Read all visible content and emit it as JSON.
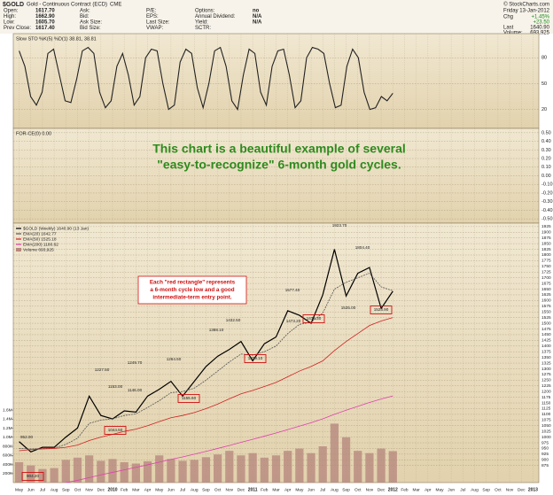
{
  "header": {
    "symbol": "$GOLD",
    "title": "Gold - Continuous Contract (ECD)",
    "exchange": "CME",
    "credit": "© StockCharts.com",
    "date": "Friday 13-Jan-2012",
    "change_label": "Chg",
    "change_pct": "+1.45%",
    "change": "+23.50",
    "last_label": "Last",
    "last": "1640.90",
    "volume_label": "Volume:",
    "volume": "693,925",
    "columns": [
      [
        {
          "label": "Open:",
          "value": "1617.70"
        },
        {
          "label": "High:",
          "value": "1662.90"
        },
        {
          "label": "Low:",
          "value": "1605.70"
        },
        {
          "label": "Prev Close:",
          "value": "1617.40"
        }
      ],
      [
        {
          "label": "Ask:"
        },
        {
          "label": "Bid:"
        },
        {
          "label": "Ask Size:"
        },
        {
          "label": "Bid Size:"
        }
      ],
      [
        {
          "label": "P/E:"
        },
        {
          "label": "EPS:"
        },
        {
          "label": "Last Size:"
        },
        {
          "label": "VWAP:"
        }
      ],
      [
        {
          "label": "Options:",
          "value": "no"
        },
        {
          "label": "Annual Dividend:",
          "value": "N/A"
        },
        {
          "label": "Yield:",
          "value": "N/A"
        },
        {
          "label": "SCTR:"
        }
      ]
    ]
  },
  "chart_data": [
    {
      "type": "line",
      "title": "Slow STO %K(5) %D(1) 38.81, 38.81",
      "color": "#222222",
      "values": [
        88,
        70,
        35,
        25,
        40,
        85,
        90,
        60,
        30,
        28,
        55,
        88,
        92,
        85,
        40,
        22,
        30,
        70,
        85,
        60,
        25,
        35,
        80,
        90,
        88,
        50,
        20,
        25,
        75,
        90,
        85,
        45,
        22,
        50,
        88,
        92,
        70,
        30,
        20,
        60,
        90,
        85,
        40,
        25,
        70,
        88,
        90,
        60,
        22,
        30,
        80,
        92,
        90,
        85,
        50,
        22,
        25,
        70,
        90,
        80,
        40,
        20,
        22,
        35,
        30,
        38.81
      ],
      "ylim": [
        -2,
        108
      ],
      "yticks": [
        20,
        50,
        80
      ],
      "grid": true
    },
    {
      "type": "line",
      "title": "FOR-CE(0) 0.00",
      "ylim": [
        -0.55,
        0.55
      ],
      "yticks": [
        {
          "value": 0.5,
          "label": "0.50"
        },
        {
          "value": 0.4,
          "label": "0.40"
        },
        {
          "value": 0.3,
          "label": "0.30"
        },
        {
          "value": 0.2,
          "label": "0.20"
        },
        {
          "value": 0.1,
          "label": "0.10"
        },
        {
          "value": 0,
          "label": "0.00"
        },
        {
          "value": -0.1,
          "label": "-0.10"
        },
        {
          "value": -0.2,
          "label": "-0.20"
        },
        {
          "value": -0.3,
          "label": "-0.30"
        },
        {
          "value": -0.4,
          "label": "-0.40"
        },
        {
          "value": -0.5,
          "label": "-0.50"
        }
      ],
      "grid": true,
      "annotation": [
        "This chart is a beautiful example of several",
        "\"easy-to-recognize\" 6-month gold cycles."
      ],
      "annotation_color": "#2e8b1e"
    },
    {
      "type": "line",
      "grid": true,
      "categories": [
        "May",
        "Jun",
        "Jul",
        "Aug",
        "Sep",
        "Oct",
        "Nov",
        "Dec",
        "2010",
        "Feb",
        "Mar",
        "Apr",
        "May",
        "Jun",
        "Jul",
        "Aug",
        "Sep",
        "Oct",
        "Nov",
        "Dec",
        "2011",
        "Feb",
        "Mar",
        "Apr",
        "May",
        "Jun",
        "Jul",
        "Aug",
        "Sep",
        "Oct",
        "Nov",
        "Dec",
        "2012",
        "Feb",
        "Mar",
        "Apr",
        "May",
        "Jun",
        "Jul",
        "Aug",
        "Sep",
        "Oct",
        "Nov",
        "Dec",
        "2013"
      ],
      "series": [
        {
          "name": "$GOLD (Weekly) 1640.90 (13 Jan)",
          "color": "#000000",
          "values": [
            980,
            935,
            955,
            955,
            1000,
            1040,
            1180,
            1095,
            1080,
            1115,
            1110,
            1180,
            1210,
            1245,
            1180,
            1245,
            1310,
            1355,
            1385,
            1420,
            1335,
            1410,
            1440,
            1555,
            1535,
            1500,
            1625,
            1825,
            1620,
            1720,
            1745,
            1565,
            1640.9,
            null,
            null,
            null,
            null,
            null,
            null,
            null,
            null,
            null,
            null,
            null,
            null
          ]
        },
        {
          "name": "EMA(20) 1642.77",
          "color": "#555555",
          "values": [
            950,
            948,
            950,
            952,
            968,
            995,
            1060,
            1075,
            1080,
            1095,
            1102,
            1130,
            1160,
            1195,
            1200,
            1215,
            1250,
            1290,
            1330,
            1365,
            1360,
            1375,
            1400,
            1455,
            1495,
            1505,
            1545,
            1650,
            1680,
            1700,
            1720,
            1660,
            1642.77,
            null,
            null,
            null,
            null,
            null,
            null,
            null,
            null,
            null,
            null,
            null,
            null
          ]
        },
        {
          "name": "EMA(50) 1525.18",
          "color": "#d02020",
          "values": [
            940,
            945,
            948,
            950,
            955,
            965,
            985,
            1000,
            1012,
            1025,
            1035,
            1050,
            1068,
            1085,
            1095,
            1108,
            1125,
            1145,
            1168,
            1190,
            1205,
            1222,
            1240,
            1265,
            1290,
            1310,
            1335,
            1380,
            1420,
            1455,
            1490,
            1510,
            1525.18,
            null,
            null,
            null,
            null,
            null,
            null,
            null,
            null,
            null,
            null,
            null,
            null
          ]
        },
        {
          "name": "EMA(200) 1180.62",
          "color": "#e040b0",
          "values": [
            760,
            770,
            780,
            790,
            800,
            810,
            822,
            834,
            845,
            856,
            867,
            878,
            890,
            902,
            913,
            925,
            937,
            950,
            963,
            977,
            990,
            1004,
            1018,
            1033,
            1048,
            1063,
            1080,
            1100,
            1118,
            1135,
            1152,
            1167,
            1180.62,
            null,
            null,
            null,
            null,
            null,
            null,
            null,
            null,
            null,
            null,
            null,
            null
          ]
        },
        {
          "name": "Volume 693,925",
          "color": "#b7887e",
          "type": "bar",
          "axis": "y2",
          "values": [
            450000,
            380000,
            300000,
            320000,
            500000,
            550000,
            600000,
            480000,
            520000,
            450000,
            420000,
            470000,
            600000,
            520000,
            480000,
            500000,
            560000,
            620000,
            700000,
            600000,
            650000,
            550000,
            600000,
            700000,
            750000,
            650000,
            800000,
            1300000,
            1000000,
            700000,
            650000,
            750000,
            693925,
            null,
            null,
            null,
            null,
            null,
            null,
            null,
            null,
            null,
            null,
            null,
            null
          ]
        }
      ],
      "ylim": [
        800,
        1940
      ],
      "yticks": [
        875,
        900,
        925,
        950,
        975,
        1000,
        1025,
        1050,
        1075,
        1100,
        1125,
        1150,
        1175,
        1200,
        1225,
        1250,
        1275,
        1300,
        1325,
        1350,
        1375,
        1400,
        1425,
        1450,
        1475,
        1500,
        1525,
        1550,
        1575,
        1600,
        1625,
        1650,
        1675,
        1700,
        1725,
        1750,
        1775,
        1800,
        1825,
        1850,
        1875,
        1900,
        1925
      ],
      "y2lim": [
        0,
        5720000
      ],
      "y2ticks": [
        {
          "value": 200000,
          "label": "200K"
        },
        {
          "value": 400000,
          "label": "400K"
        },
        {
          "value": 600000,
          "label": "600K"
        },
        {
          "value": 800000,
          "label": "800K"
        },
        {
          "value": 1000000,
          "label": "1.0M"
        },
        {
          "value": 1200000,
          "label": "1.2M"
        },
        {
          "value": 1400000,
          "label": "1.4M"
        },
        {
          "value": 1600000,
          "label": "1.6M"
        }
      ],
      "price_labels": [
        {
          "label": "952.00"
        },
        {
          "label": "904.20",
          "boxed": true
        },
        {
          "label": "1227.50"
        },
        {
          "label": "1153.00"
        },
        {
          "label": "1044.50",
          "boxed": true
        },
        {
          "label": "1146.00"
        },
        {
          "label": "1249.70"
        },
        {
          "label": "1264.50"
        },
        {
          "label": "1155.60",
          "boxed": true
        },
        {
          "label": "1388.10"
        },
        {
          "label": "1432.50"
        },
        {
          "label": "1309.10",
          "boxed": true
        },
        {
          "label": "1577.40"
        },
        {
          "label": "1478.30",
          "boxed": true
        },
        {
          "label": "1473.20"
        },
        {
          "label": "1923.70"
        },
        {
          "label": "1535.00"
        },
        {
          "label": "1804.40"
        },
        {
          "label": "1523.90",
          "boxed": true
        }
      ],
      "note": [
        "Each \"red rectangle\" represents",
        "a 6-month cycle low and a good",
        "intermediate-term entry point."
      ],
      "note_color": "#d01010"
    }
  ]
}
